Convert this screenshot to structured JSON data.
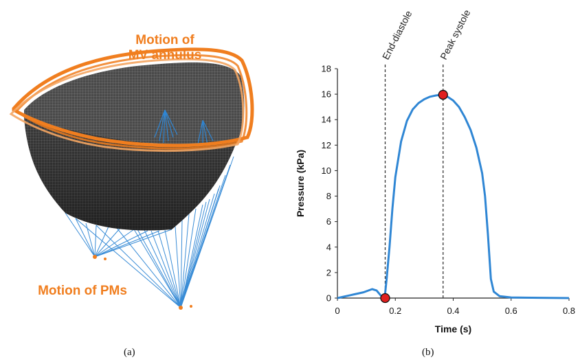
{
  "panel_a": {
    "label_annulus_line1": "Motion of",
    "label_annulus_line2": "MV annulus",
    "label_pms": "Motion of PMs",
    "caption": "(a)",
    "colors": {
      "annulus": "#f07e1f",
      "chordae": "#2f86d4",
      "mesh": "#2a2a2a"
    }
  },
  "panel_b": {
    "caption": "(b)",
    "chart_data": {
      "type": "line",
      "xlabel": "Time (s)",
      "ylabel": "Pressure (kPa)",
      "xlim": [
        0,
        0.8
      ],
      "ylim": [
        0,
        18
      ],
      "xticks": [
        0,
        0.2,
        0.4,
        0.6,
        0.8
      ],
      "xtick_labels": [
        "0",
        "0.2",
        "0.4",
        "0.6",
        "0.8"
      ],
      "yticks": [
        0,
        2,
        4,
        6,
        8,
        10,
        12,
        14,
        16,
        18
      ],
      "grid": false,
      "series": [
        {
          "color": "#2f86d4",
          "x": [
            0,
            0.03,
            0.06,
            0.09,
            0.12,
            0.135,
            0.15,
            0.16,
            0.165,
            0.17,
            0.18,
            0.19,
            0.2,
            0.22,
            0.24,
            0.26,
            0.28,
            0.3,
            0.32,
            0.34,
            0.36,
            0.38,
            0.4,
            0.42,
            0.44,
            0.46,
            0.48,
            0.5,
            0.51,
            0.52,
            0.53,
            0.54,
            0.56,
            0.6,
            0.7,
            0.8
          ],
          "y": [
            0,
            0.15,
            0.3,
            0.45,
            0.7,
            0.6,
            0.2,
            0.0,
            0.4,
            1.5,
            4.0,
            7.0,
            9.5,
            12.3,
            13.9,
            14.8,
            15.3,
            15.6,
            15.8,
            15.9,
            15.95,
            15.8,
            15.5,
            15.0,
            14.2,
            13.2,
            11.8,
            9.8,
            8.0,
            5.0,
            1.5,
            0.5,
            0.15,
            0.05,
            0.02,
            0.0
          ]
        }
      ],
      "markers": [
        {
          "x": 0.165,
          "y": 0,
          "color": "#e02020"
        },
        {
          "x": 0.365,
          "y": 15.95,
          "color": "#e02020"
        }
      ],
      "annotations": [
        {
          "label": "End-diastole",
          "x": 0.165,
          "style": "dashed"
        },
        {
          "label": "Peak systole",
          "x": 0.365,
          "style": "dashed"
        }
      ]
    }
  }
}
